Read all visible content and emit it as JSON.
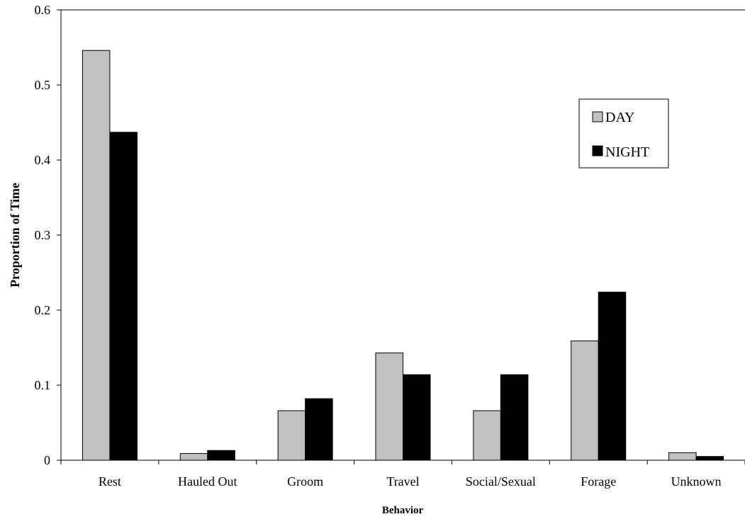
{
  "chart_data": {
    "type": "bar",
    "categories": [
      "Rest",
      "Hauled Out",
      "Groom",
      "Travel",
      "Social/Sexual",
      "Forage",
      "Unknown"
    ],
    "series": [
      {
        "name": "DAY",
        "color": "#c0c0c0",
        "values": [
          0.546,
          0.009,
          0.066,
          0.143,
          0.066,
          0.159,
          0.01
        ]
      },
      {
        "name": "NIGHT",
        "color": "#000000",
        "values": [
          0.437,
          0.013,
          0.082,
          0.114,
          0.114,
          0.224,
          0.005
        ]
      }
    ],
    "xlabel": "Behavior",
    "ylabel": "Proportion of Time",
    "ylim": [
      0,
      0.6
    ],
    "yticks": [
      0,
      0.1,
      0.2,
      0.3,
      0.4,
      0.5,
      0.6
    ],
    "ytick_labels": [
      "0",
      "0.1",
      "0.2",
      "0.3",
      "0.4",
      "0.5",
      "0.6"
    ],
    "grid": false,
    "legend_position": "top-right"
  }
}
